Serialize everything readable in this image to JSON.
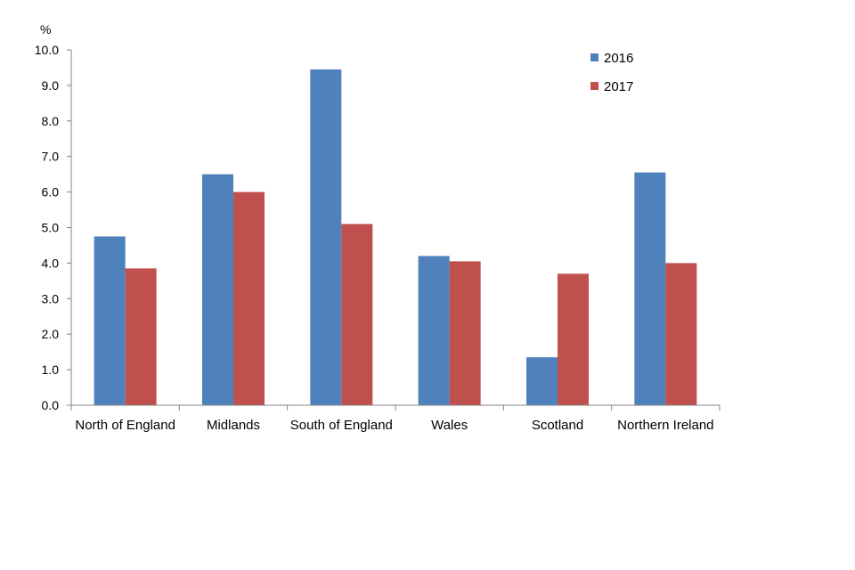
{
  "chart_data": {
    "type": "bar",
    "ylabel": "%",
    "ylim": [
      0,
      10
    ],
    "yticks": [
      "0.0",
      "1.0",
      "2.0",
      "3.0",
      "4.0",
      "5.0",
      "6.0",
      "7.0",
      "8.0",
      "9.0",
      "10.0"
    ],
    "categories": [
      "North of England",
      "Midlands",
      "South of England",
      "Wales",
      "Scotland",
      "Northern Ireland"
    ],
    "series": [
      {
        "name": "2016",
        "color": "#4F81BD",
        "values": [
          4.75,
          6.5,
          9.45,
          4.2,
          1.35,
          6.55
        ]
      },
      {
        "name": "2017",
        "color": "#C0504D",
        "values": [
          3.85,
          6.0,
          5.1,
          4.05,
          3.7,
          4.0
        ]
      }
    ],
    "grid": false,
    "legend_position": "top-right"
  }
}
